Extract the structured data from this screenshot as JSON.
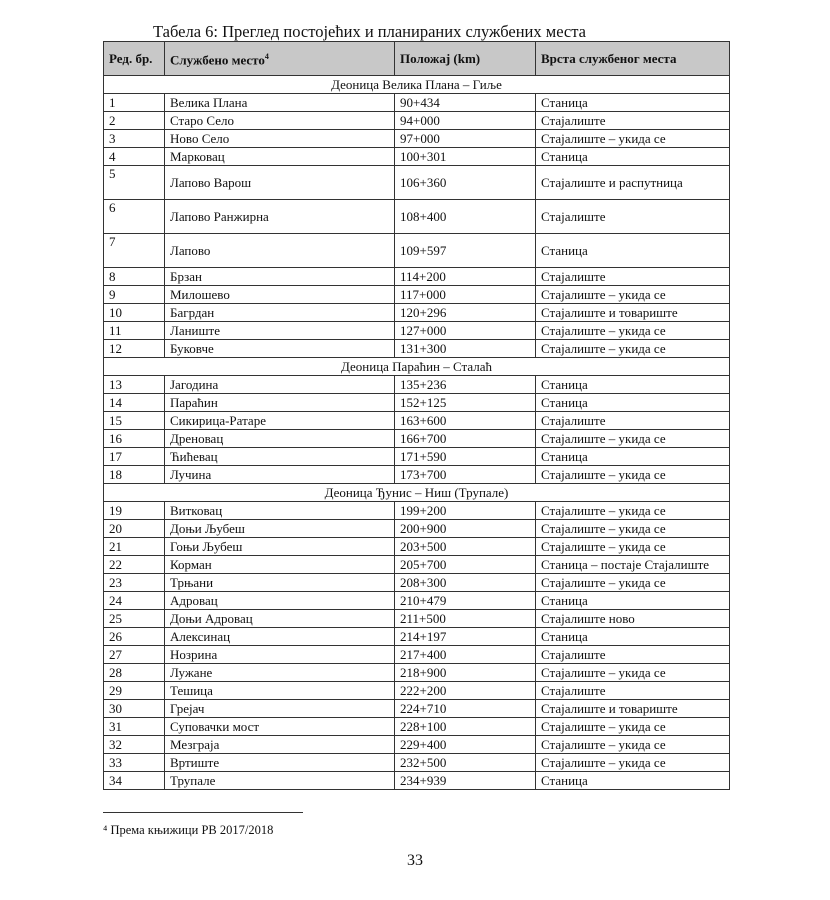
{
  "caption": "Табела 6: Преглед постојећих и планираних службених места",
  "headers": {
    "no": "Ред. бр.",
    "place": "Службено место",
    "place_sup": "4",
    "km": "Положај (km)",
    "type": "Врста службеног места"
  },
  "sections": [
    {
      "title": "Деоница Велика Плана – Гиље",
      "rows": [
        [
          "1",
          "Велика Плана",
          "90+434",
          "Станица"
        ],
        [
          "2",
          "Старо Село",
          "94+000",
          "Стајалиште"
        ],
        [
          "3",
          "Ново Село",
          "97+000",
          "Стајалиште – укида се"
        ],
        [
          "4",
          "Марковац",
          "100+301",
          "Станица"
        ],
        [
          "5",
          "Лапово Варош",
          "106+360",
          "Стајалиште и распутница"
        ],
        [
          "6",
          "Лапово Ранжирна",
          "108+400",
          "Стајалиште"
        ],
        [
          "7",
          "Лапово",
          "109+597",
          "Станица"
        ],
        [
          "8",
          "Брзан",
          "114+200",
          "Стајалиште"
        ],
        [
          "9",
          "Милошево",
          "117+000",
          "Стајалиште – укида се"
        ],
        [
          "10",
          "Багрдан",
          "120+296",
          "Стајалиште и товариште"
        ],
        [
          "11",
          "Ланиште",
          "127+000",
          "Стајалиште – укида се"
        ],
        [
          "12",
          "Буковче",
          "131+300",
          "Стајалиште – укида се"
        ]
      ]
    },
    {
      "title": "Деоница Параћин – Сталаћ",
      "rows": [
        [
          "13",
          "Јагодина",
          "135+236",
          "Станица"
        ],
        [
          "14",
          "Параћин",
          "152+125",
          "Станица"
        ],
        [
          "15",
          "Сикирица-Ратаре",
          "163+600",
          "Стајалиште"
        ],
        [
          "16",
          "Дреновац",
          "166+700",
          "Стајалиште – укида се"
        ],
        [
          "17",
          "Ћићевац",
          "171+590",
          "Станица"
        ],
        [
          "18",
          "Лучина",
          "173+700",
          "Стајалиште – укида се"
        ]
      ]
    },
    {
      "title": "Деоница Ђунис – Ниш (Трупале)",
      "rows": [
        [
          "19",
          "Витковац",
          "199+200",
          "Стајалиште – укида се"
        ],
        [
          "20",
          "Доњи Љубеш",
          "200+900",
          "Стајалиште – укида се"
        ],
        [
          "21",
          "Гоњи Љубеш",
          "203+500",
          "Стајалиште – укида се"
        ],
        [
          "22",
          "Корман",
          "205+700",
          "Станица – постаје Стајалиште"
        ],
        [
          "23",
          "Трњани",
          "208+300",
          "Стајалиште – укида се"
        ],
        [
          "24",
          "Адровац",
          "210+479",
          "Станица"
        ],
        [
          "25",
          "Доњи Адровац",
          "211+500",
          "Стајалиште ново"
        ],
        [
          "26",
          "Алексинац",
          "214+197",
          "Станица"
        ],
        [
          "27",
          "Нозрина",
          "217+400",
          "Стајалиште"
        ],
        [
          "28",
          "Лужане",
          "218+900",
          "Стајалиште – укида се"
        ],
        [
          "29",
          "Тешица",
          "222+200",
          "Стајалиште"
        ],
        [
          "30",
          "Грејач",
          "224+710",
          "Стајалиште и товариште"
        ],
        [
          "31",
          "Суповачки мост",
          "228+100",
          "Стајалиште – укида се"
        ],
        [
          "32",
          "Мезграја",
          "229+400",
          "Стајалиште – укида се"
        ],
        [
          "33",
          "Вртиште",
          "232+500",
          "Стајалиште – укида се"
        ],
        [
          "34",
          "Трупале",
          "234+939",
          "Станица"
        ]
      ]
    }
  ],
  "footnote": "⁴ Према књижици РВ 2017/2018",
  "page_number": "33"
}
